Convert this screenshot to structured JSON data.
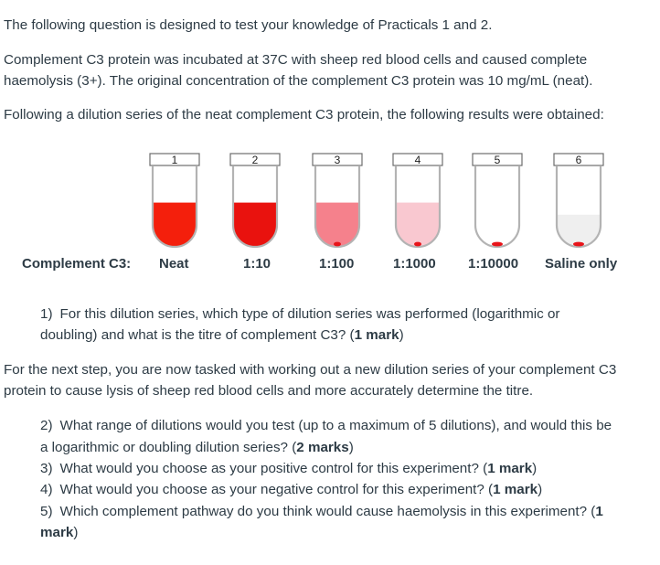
{
  "intro": {
    "line1": "The following question is designed to test your knowledge of Practicals 1 and 2.",
    "line2a": "Complement C3 protein was incubated at 37C with sheep red blood cells and caused complete",
    "line2b": "haemolysis (3+). The original concentration of the complement C3 protein was 10 mg/mL (neat).",
    "line3": "Following a dilution series of the neat complement C3 protein, the following results were obtained:"
  },
  "tubes": [
    {
      "number": "1",
      "fill_level": 0.55,
      "color": "#f41f0c"
    },
    {
      "number": "2",
      "fill_level": 0.55,
      "color": "#e9120e"
    },
    {
      "number": "3",
      "fill_level": 0.55,
      "color": "#f5818c"
    },
    {
      "number": "4",
      "fill_level": 0.55,
      "color": "#f9c8d0"
    },
    {
      "number": "5",
      "fill_level": 0.0,
      "color": "#ffffff"
    },
    {
      "number": "6",
      "fill_level": 0.4,
      "color": "#efefef"
    }
  ],
  "labels": {
    "row_title": "Complement C3:",
    "d1": "Neat",
    "d2": "1:10",
    "d3": "1:100",
    "d4": "1:1000",
    "d5": "1:10000",
    "d6": "Saline only"
  },
  "q1": {
    "num": "1)",
    "a": "For this dilution series, which type of dilution series was performed (logarithmic or",
    "b": "doubling) and what is the titre of complement C3? (",
    "marks": "1 mark",
    "end": ")"
  },
  "next_step": {
    "a": "For the next step, you are now tasked with working out a new dilution series of your complement C3",
    "b": "protein to cause lysis of sheep red blood cells and more accurately determine the titre."
  },
  "q2": {
    "num": "2)",
    "a": "What range of dilutions would you test (up to a maximum of 5 dilutions), and would this be",
    "b": "a logarithmic or doubling dilution series? (",
    "marks": "2 marks",
    "end": ")"
  },
  "q3": {
    "num": "3)",
    "a": "What would you choose as your positive control for this experiment? (",
    "marks": "1 mark",
    "end": ")"
  },
  "q4": {
    "num": "4)",
    "a": "What would you choose as your negative control for this experiment? (",
    "marks": "1 mark",
    "end": ")"
  },
  "q5": {
    "num": "5)",
    "a": "Which complement pathway do you think would cause haemolysis in this experiment? (",
    "marks": "1",
    "b": "mark",
    "end": ")"
  },
  "colors": {
    "text": "#2d3b45",
    "tube_outline": "#b3b3b3",
    "pellet": "#e8141a"
  }
}
